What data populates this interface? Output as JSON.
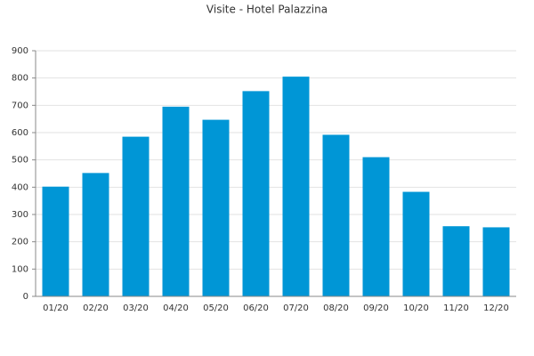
{
  "chart_data": {
    "type": "bar",
    "title": "Visite - Hotel Palazzina",
    "categories": [
      "01/20",
      "02/20",
      "03/20",
      "04/20",
      "05/20",
      "06/20",
      "07/20",
      "08/20",
      "09/20",
      "10/20",
      "11/20",
      "12/20"
    ],
    "values": [
      402,
      452,
      585,
      695,
      647,
      752,
      805,
      592,
      510,
      383,
      257,
      253
    ],
    "color": "#0096d6",
    "ylim": [
      0,
      900
    ],
    "yticks": [
      0,
      100,
      200,
      300,
      400,
      500,
      600,
      700,
      800,
      900
    ],
    "grid": true
  }
}
